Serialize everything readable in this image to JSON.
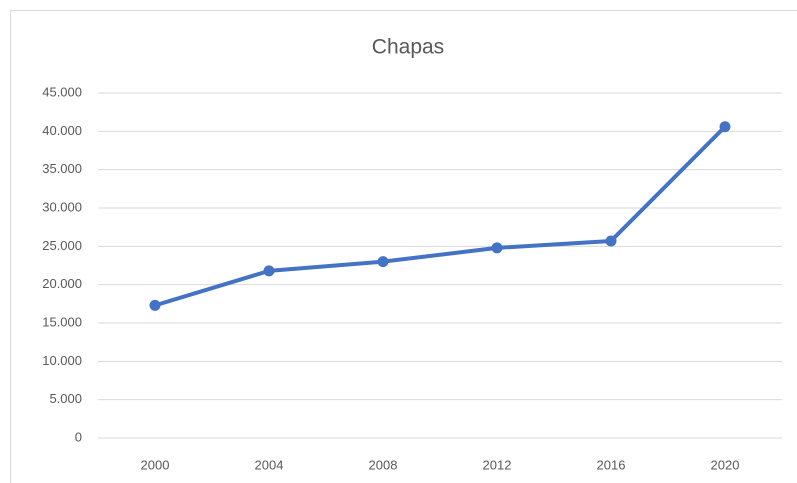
{
  "chart_data": {
    "type": "line",
    "title": "Chapas",
    "categories": [
      "2000",
      "2004",
      "2008",
      "2012",
      "2016",
      "2020"
    ],
    "series": [
      {
        "name": "Chapas",
        "color": "#4472c4",
        "values": [
          17300,
          21800,
          23000,
          24800,
          25700,
          40600
        ]
      }
    ],
    "ylim": [
      0,
      45000
    ],
    "yticks": [
      0,
      {
        "value": 5000,
        "label": "5.000"
      },
      {
        "value": 10000,
        "label": "10.000"
      },
      {
        "value": 15000,
        "label": "15.000"
      },
      {
        "value": 20000,
        "label": "20.000"
      },
      {
        "value": 25000,
        "label": "25.000"
      },
      {
        "value": 30000,
        "label": "30.000"
      },
      {
        "value": 35000,
        "label": "35.000"
      },
      {
        "value": 40000,
        "label": "40.000"
      },
      {
        "value": 45000,
        "label": "45.000"
      }
    ],
    "grid": true
  }
}
